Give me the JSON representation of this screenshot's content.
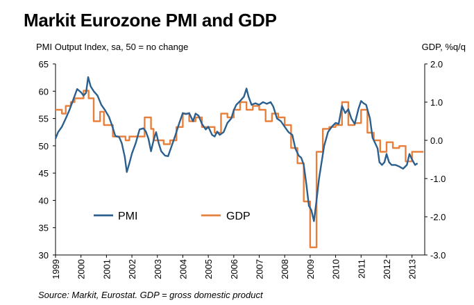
{
  "header": {
    "title": "Markit Eurozone PMI and GDP",
    "left_axis_title": "PMI Output Index, sa, 50 = no change",
    "right_axis_title": "GDP, %q/q",
    "source": "Source: Markit, Eurostat. GDP = gross domestic product"
  },
  "chart_data": {
    "type": "line",
    "title": "Markit Eurozone PMI and GDP",
    "x_range": [
      1999.0,
      2013.5
    ],
    "x_ticks": [
      "1999",
      "2000",
      "2001",
      "2002",
      "2003",
      "2004",
      "2005",
      "2006",
      "2007",
      "2008",
      "2009",
      "2010",
      "2011",
      "2012",
      "2013"
    ],
    "ylim_left": [
      30,
      65
    ],
    "y_ticks_left": [
      "30",
      "35",
      "40",
      "45",
      "50",
      "55",
      "60",
      "65"
    ],
    "ylim_right": [
      -3.0,
      2.0
    ],
    "y_ticks_right": [
      "-3.0",
      "-2.0",
      "-1.0",
      "0.0",
      "1.0",
      "2.0"
    ],
    "grid": false,
    "legend_placement": "bottom-left",
    "series": [
      {
        "name": "PMI",
        "axis": "left",
        "color": "#2b5f8e",
        "points": [
          [
            1999.0,
            51.3
          ],
          [
            1999.1,
            52.5
          ],
          [
            1999.25,
            53.5
          ],
          [
            1999.4,
            55.0
          ],
          [
            1999.55,
            56.6
          ],
          [
            1999.7,
            58.5
          ],
          [
            1999.85,
            60.4
          ],
          [
            2000.0,
            59.8
          ],
          [
            2000.1,
            59.2
          ],
          [
            2000.2,
            59.7
          ],
          [
            2000.28,
            62.6
          ],
          [
            2000.38,
            60.9
          ],
          [
            2000.5,
            60.0
          ],
          [
            2000.65,
            59.2
          ],
          [
            2000.8,
            57.5
          ],
          [
            2000.95,
            56.5
          ],
          [
            2001.1,
            55.3
          ],
          [
            2001.2,
            54.0
          ],
          [
            2001.35,
            51.8
          ],
          [
            2001.5,
            51.6
          ],
          [
            2001.6,
            50.5
          ],
          [
            2001.72,
            48.0
          ],
          [
            2001.8,
            45.2
          ],
          [
            2001.9,
            46.8
          ],
          [
            2002.0,
            48.6
          ],
          [
            2002.15,
            50.5
          ],
          [
            2002.3,
            53.0
          ],
          [
            2002.45,
            53.2
          ],
          [
            2002.55,
            52.6
          ],
          [
            2002.65,
            51.3
          ],
          [
            2002.75,
            49.0
          ],
          [
            2002.85,
            51.0
          ],
          [
            2002.95,
            52.5
          ],
          [
            2003.05,
            50.5
          ],
          [
            2003.15,
            49.0
          ],
          [
            2003.3,
            48.2
          ],
          [
            2003.42,
            48.1
          ],
          [
            2003.55,
            49.8
          ],
          [
            2003.7,
            51.8
          ],
          [
            2003.85,
            54.0
          ],
          [
            2004.0,
            56.0
          ],
          [
            2004.12,
            55.8
          ],
          [
            2004.25,
            56.0
          ],
          [
            2004.4,
            54.5
          ],
          [
            2004.5,
            55.9
          ],
          [
            2004.62,
            55.5
          ],
          [
            2004.75,
            54.0
          ],
          [
            2004.9,
            53.0
          ],
          [
            2005.0,
            53.5
          ],
          [
            2005.15,
            52.0
          ],
          [
            2005.25,
            51.7
          ],
          [
            2005.35,
            52.6
          ],
          [
            2005.45,
            52.0
          ],
          [
            2005.6,
            52.5
          ],
          [
            2005.75,
            54.2
          ],
          [
            2005.9,
            55.0
          ],
          [
            2006.0,
            56.5
          ],
          [
            2006.1,
            57.5
          ],
          [
            2006.25,
            58.2
          ],
          [
            2006.4,
            59.0
          ],
          [
            2006.5,
            60.5
          ],
          [
            2006.58,
            59.0
          ],
          [
            2006.7,
            57.5
          ],
          [
            2006.85,
            57.8
          ],
          [
            2007.0,
            57.5
          ],
          [
            2007.15,
            58.0
          ],
          [
            2007.3,
            57.7
          ],
          [
            2007.45,
            58.0
          ],
          [
            2007.55,
            57.2
          ],
          [
            2007.7,
            55.0
          ],
          [
            2007.85,
            54.5
          ],
          [
            2008.0,
            53.5
          ],
          [
            2008.15,
            52.5
          ],
          [
            2008.3,
            52.0
          ],
          [
            2008.42,
            49.5
          ],
          [
            2008.55,
            48.2
          ],
          [
            2008.65,
            47.8
          ],
          [
            2008.75,
            46.5
          ],
          [
            2008.85,
            43.0
          ],
          [
            2008.95,
            39.0
          ],
          [
            2009.05,
            38.2
          ],
          [
            2009.15,
            36.2
          ],
          [
            2009.25,
            40.0
          ],
          [
            2009.35,
            44.0
          ],
          [
            2009.45,
            47.0
          ],
          [
            2009.55,
            50.0
          ],
          [
            2009.7,
            52.5
          ],
          [
            2009.85,
            53.5
          ],
          [
            2010.0,
            54.2
          ],
          [
            2010.12,
            54.0
          ],
          [
            2010.25,
            57.3
          ],
          [
            2010.38,
            56.0
          ],
          [
            2010.5,
            56.7
          ],
          [
            2010.62,
            55.0
          ],
          [
            2010.75,
            54.0
          ],
          [
            2010.9,
            56.8
          ],
          [
            2011.0,
            58.2
          ],
          [
            2011.1,
            57.8
          ],
          [
            2011.2,
            57.5
          ],
          [
            2011.35,
            55.0
          ],
          [
            2011.45,
            51.5
          ],
          [
            2011.55,
            50.5
          ],
          [
            2011.65,
            49.5
          ],
          [
            2011.72,
            47.0
          ],
          [
            2011.82,
            46.5
          ],
          [
            2011.92,
            47.0
          ],
          [
            2012.0,
            48.5
          ],
          [
            2012.1,
            47.0
          ],
          [
            2012.2,
            46.5
          ],
          [
            2012.35,
            46.5
          ],
          [
            2012.5,
            46.2
          ],
          [
            2012.65,
            45.8
          ],
          [
            2012.8,
            46.5
          ],
          [
            2012.9,
            48.5
          ],
          [
            2013.0,
            47.5
          ],
          [
            2013.12,
            46.5
          ],
          [
            2013.22,
            46.8
          ]
        ]
      },
      {
        "name": "GDP",
        "axis": "right",
        "color": "#e8803d",
        "step": true,
        "points": [
          [
            1999.0,
            0.8
          ],
          [
            1999.25,
            0.7
          ],
          [
            1999.4,
            0.9
          ],
          [
            1999.6,
            1.0
          ],
          [
            1999.75,
            1.1
          ],
          [
            2000.0,
            1.1
          ],
          [
            2000.1,
            1.3
          ],
          [
            2000.3,
            1.1
          ],
          [
            2000.5,
            0.5
          ],
          [
            2000.75,
            0.75
          ],
          [
            2000.9,
            0.4
          ],
          [
            2001.25,
            0.1
          ],
          [
            2001.5,
            0.1
          ],
          [
            2001.75,
            0.0
          ],
          [
            2001.9,
            0.1
          ],
          [
            2002.0,
            0.1
          ],
          [
            2002.25,
            0.1
          ],
          [
            2002.5,
            0.6
          ],
          [
            2002.75,
            0.3
          ],
          [
            2002.85,
            0.0
          ],
          [
            2003.0,
            0.0
          ],
          [
            2003.15,
            0.0
          ],
          [
            2003.25,
            -0.1
          ],
          [
            2003.5,
            0.0
          ],
          [
            2003.75,
            0.35
          ],
          [
            2004.0,
            0.7
          ],
          [
            2004.25,
            0.5
          ],
          [
            2004.5,
            0.6
          ],
          [
            2004.75,
            0.35
          ],
          [
            2005.0,
            0.35
          ],
          [
            2005.25,
            0.2
          ],
          [
            2005.5,
            0.7
          ],
          [
            2005.75,
            0.6
          ],
          [
            2006.0,
            0.8
          ],
          [
            2006.25,
            1.0
          ],
          [
            2006.5,
            0.8
          ],
          [
            2006.75,
            0.9
          ],
          [
            2007.0,
            0.8
          ],
          [
            2007.25,
            0.5
          ],
          [
            2007.5,
            0.7
          ],
          [
            2007.75,
            0.6
          ],
          [
            2008.0,
            0.4
          ],
          [
            2008.25,
            -0.2
          ],
          [
            2008.5,
            -0.6
          ],
          [
            2008.75,
            -1.6
          ],
          [
            2009.0,
            -2.8
          ],
          [
            2009.25,
            -0.3
          ],
          [
            2009.5,
            0.3
          ],
          [
            2009.75,
            0.35
          ],
          [
            2010.0,
            0.4
          ],
          [
            2010.25,
            1.0
          ],
          [
            2010.5,
            0.4
          ],
          [
            2010.75,
            0.45
          ],
          [
            2011.0,
            0.8
          ],
          [
            2011.25,
            0.2
          ],
          [
            2011.5,
            0.0
          ],
          [
            2011.75,
            -0.3
          ],
          [
            2012.0,
            -0.05
          ],
          [
            2012.25,
            -0.2
          ],
          [
            2012.5,
            -0.15
          ],
          [
            2012.75,
            -0.55
          ],
          [
            2013.0,
            -0.3
          ],
          [
            2013.25,
            -0.3
          ]
        ]
      }
    ]
  }
}
